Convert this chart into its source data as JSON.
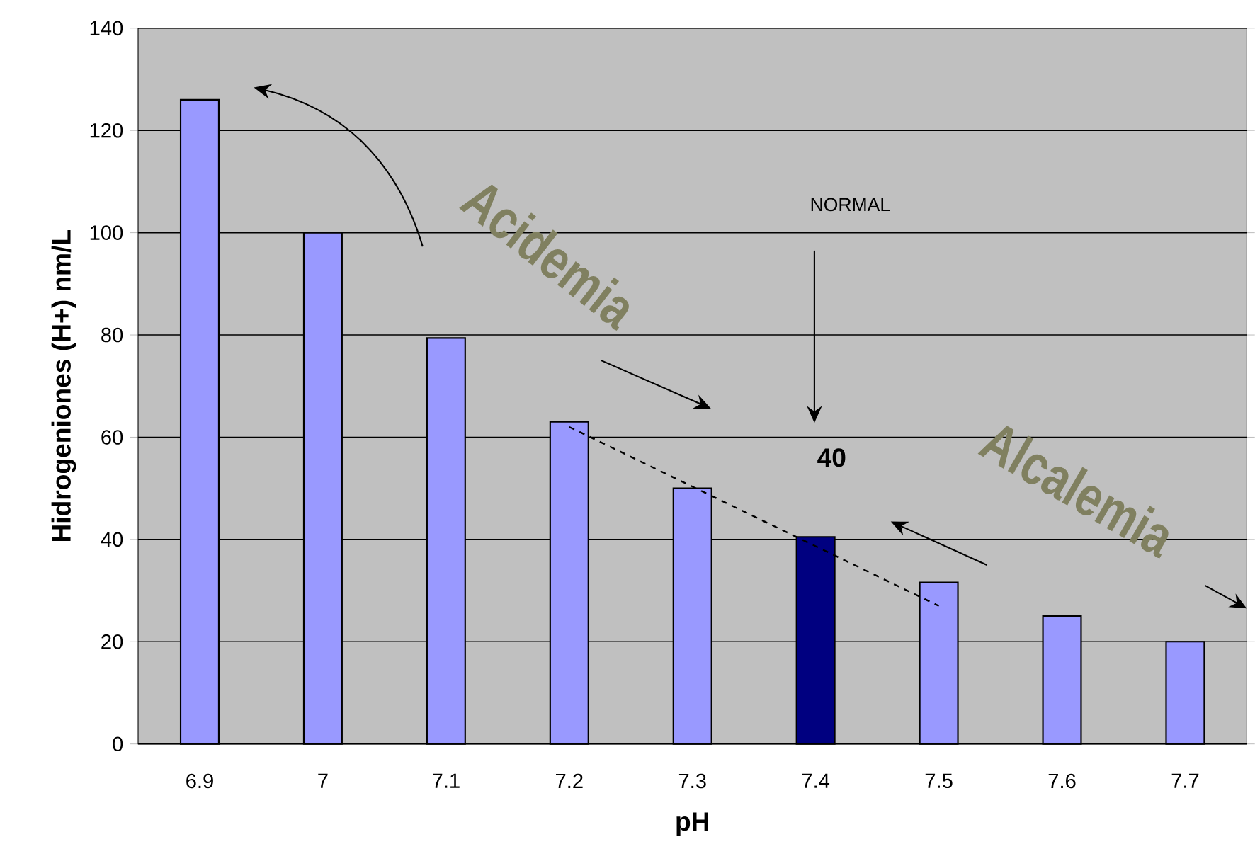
{
  "chart_data": {
    "type": "bar",
    "xlabel": "pH",
    "ylabel": "Hidrogeniones (H+) nm/L",
    "categories": [
      "6.9",
      "7",
      "7.1",
      "7.2",
      "7.3",
      "7.4",
      "7.5",
      "7.6",
      "7.7"
    ],
    "series": [
      {
        "values": [
          126,
          100,
          79.4,
          63,
          50,
          40.5,
          31.6,
          25,
          20
        ],
        "colors": [
          "#9999ff",
          "#9999ff",
          "#9999ff",
          "#9999ff",
          "#9999ff",
          "#000080",
          "#9999ff",
          "#9999ff",
          "#9999ff"
        ]
      },
      {
        "type": "line",
        "x": [
          "7.2",
          "7.5"
        ],
        "values": [
          62,
          27
        ],
        "color": "#000000",
        "line_style": "dashed"
      }
    ],
    "ylim": [
      0,
      140
    ],
    "yticks": [
      0,
      20,
      40,
      60,
      80,
      100,
      120,
      140
    ],
    "grid": "y",
    "annotations": [
      "NORMAL",
      {
        "text": "40",
        "x": "7.4",
        "y": 40.5
      },
      "Acidemia",
      "Alcalemia"
    ]
  }
}
